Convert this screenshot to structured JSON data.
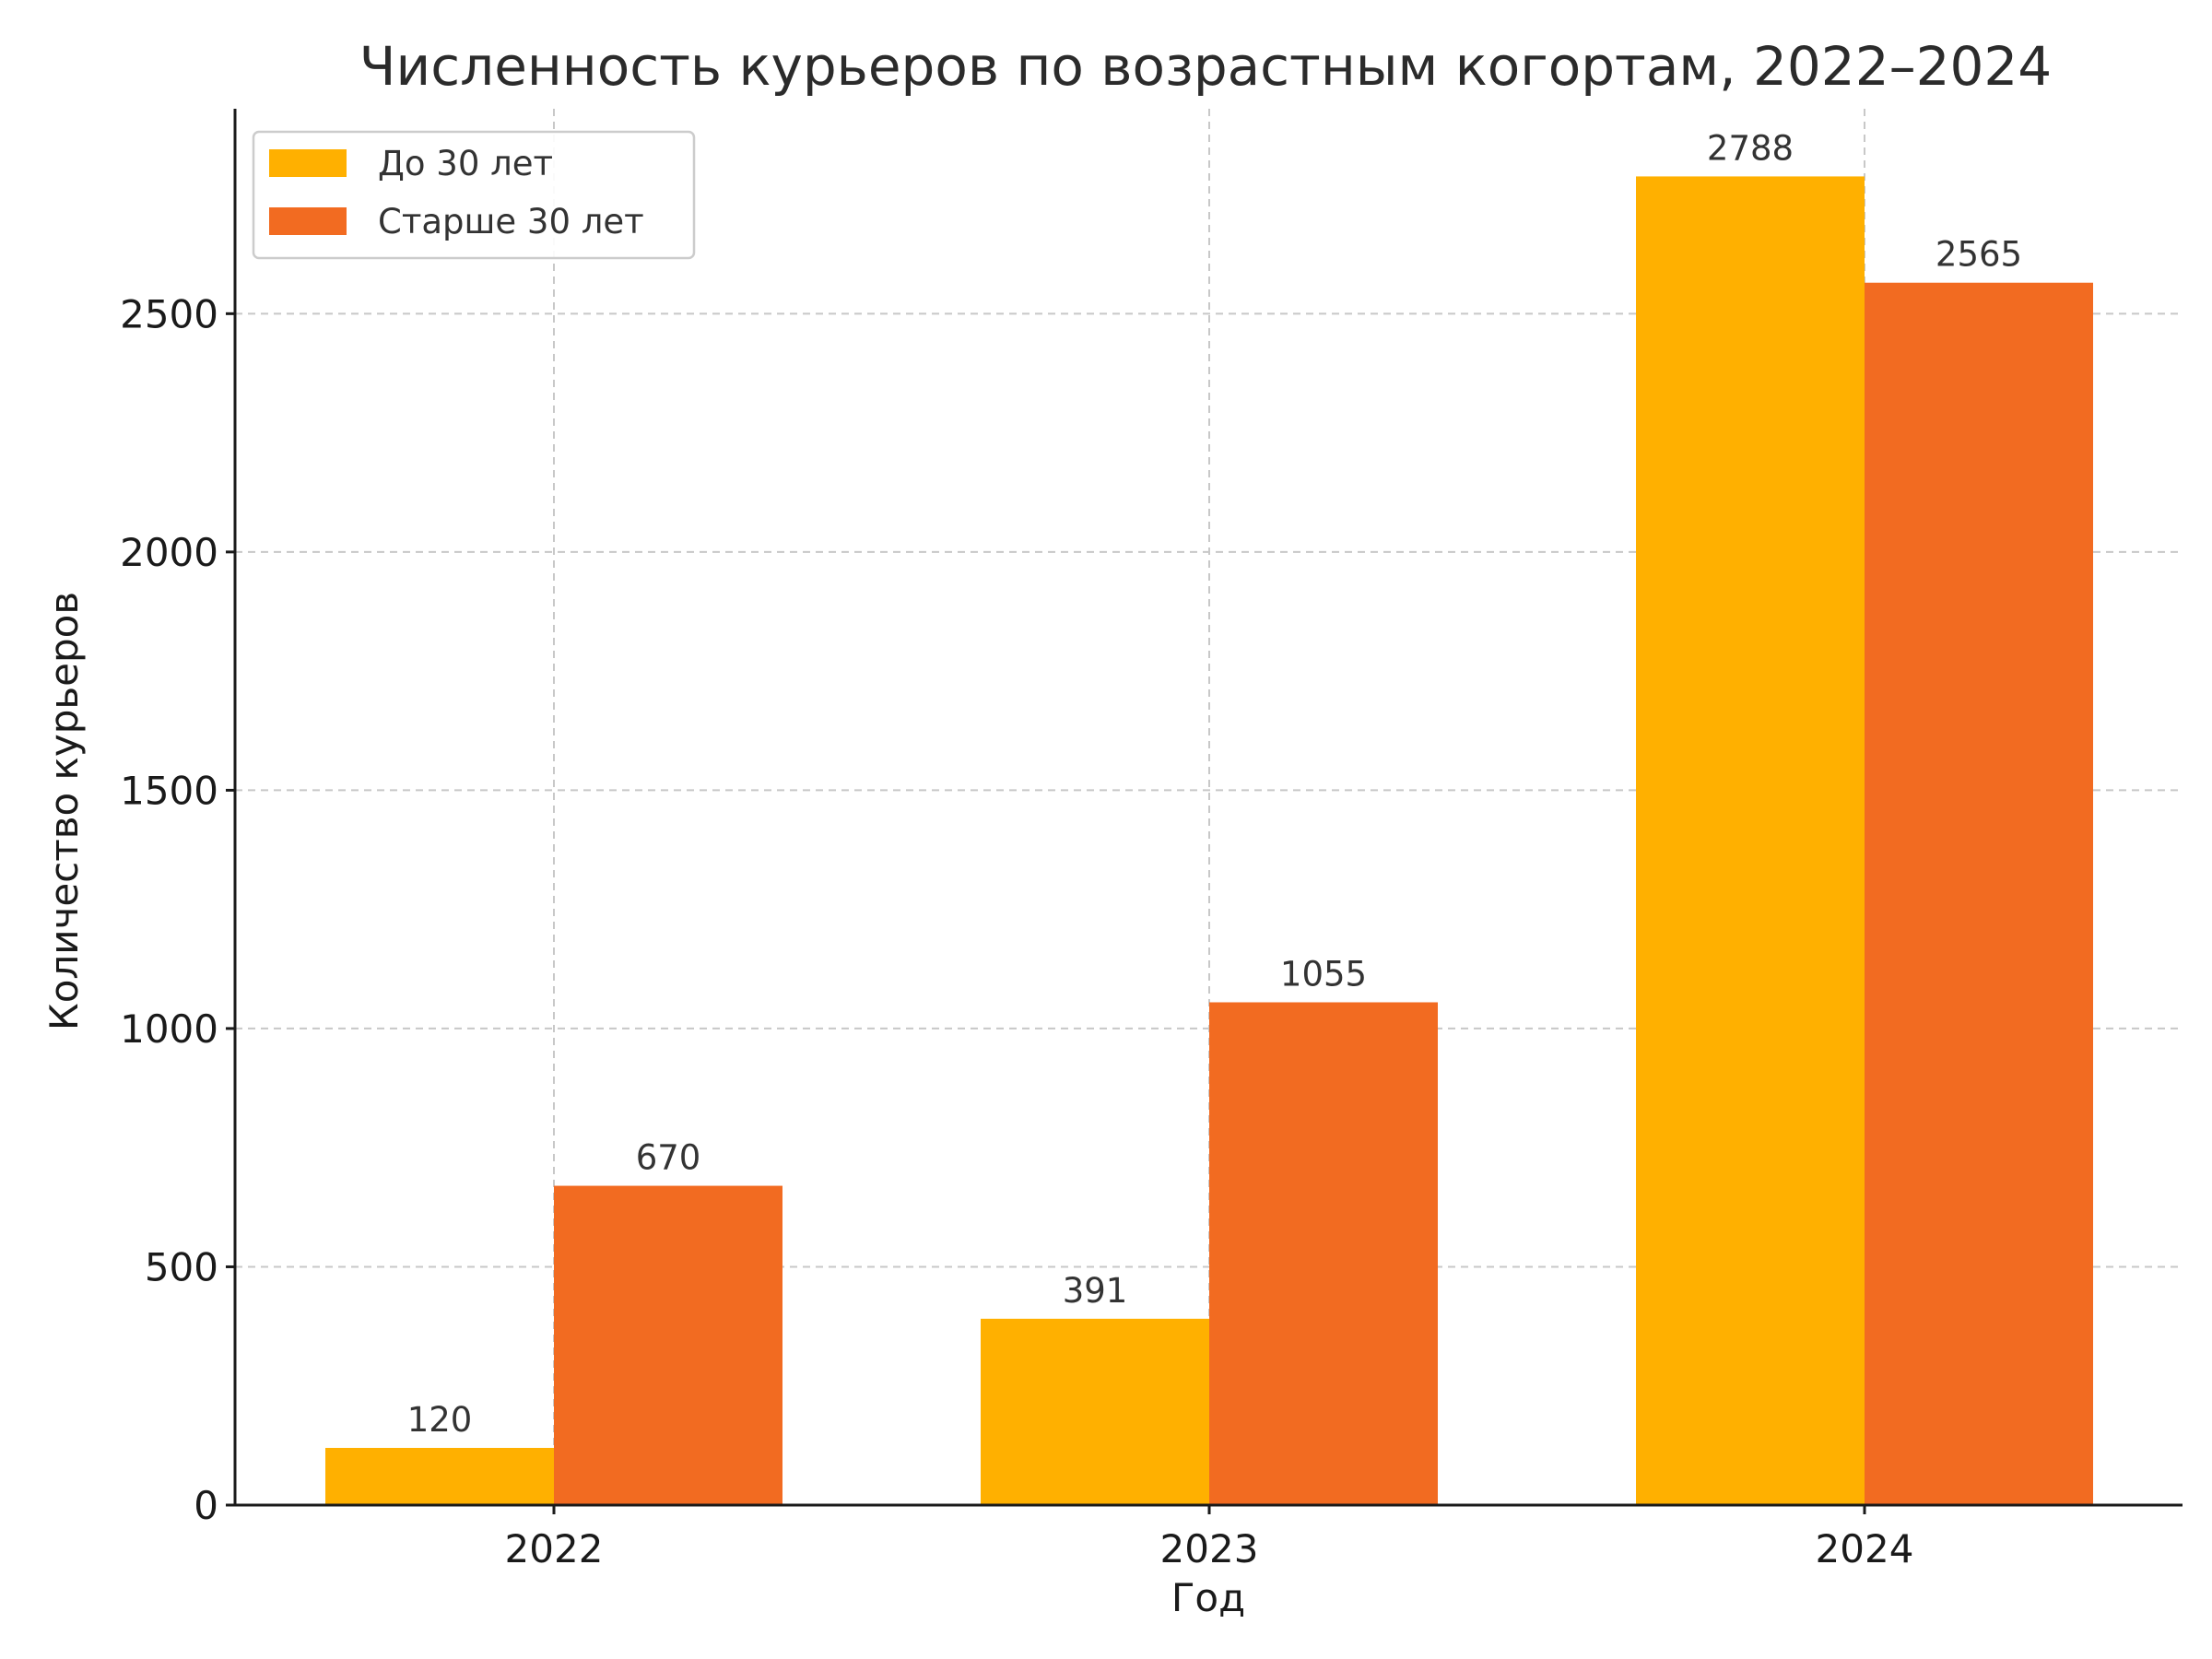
{
  "chart_data": {
    "type": "bar",
    "title": "Численность курьеров по возрастным когортам, 2022–2024",
    "xlabel": "Год",
    "ylabel": "Количество курьеров",
    "categories": [
      "2022",
      "2023",
      "2024"
    ],
    "series": [
      {
        "name": "До 30 лет",
        "values": [
          120,
          391,
          2788
        ],
        "color": "#FFB000"
      },
      {
        "name": "Старше 30 лет",
        "values": [
          670,
          1055,
          2565
        ],
        "color": "#F26B21"
      }
    ],
    "ylim": [
      0,
      2930
    ],
    "yticks": [
      0,
      500,
      1000,
      1500,
      2000,
      2500
    ],
    "grid": true,
    "legend_position": "top-left"
  }
}
